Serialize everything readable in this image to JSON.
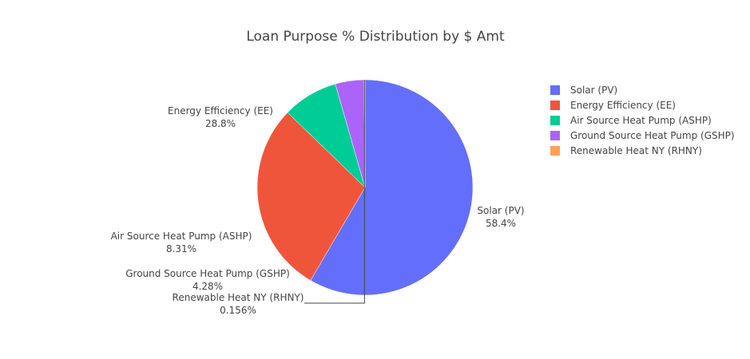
{
  "chart_data": {
    "type": "pie",
    "title": "Loan Purpose % Distribution by $ Amt",
    "slices": [
      {
        "label": "Solar (PV)",
        "percent_text": "58.4%",
        "value": 58.4,
        "color": "#636efa"
      },
      {
        "label": "Energy Efficiency (EE)",
        "percent_text": "28.8%",
        "value": 28.8,
        "color": "#ef553b"
      },
      {
        "label": "Air Source Heat Pump (ASHP)",
        "percent_text": "8.31%",
        "value": 8.31,
        "color": "#00cc96"
      },
      {
        "label": "Ground Source Heat Pump (GSHP)",
        "percent_text": "4.28%",
        "value": 4.28,
        "color": "#ab63fa"
      },
      {
        "label": "Renewable Heat NY (RHNY)",
        "percent_text": "0.156%",
        "value": 0.156,
        "color": "#ffa15a"
      }
    ],
    "direction": "clockwise",
    "legend_position": "right"
  }
}
